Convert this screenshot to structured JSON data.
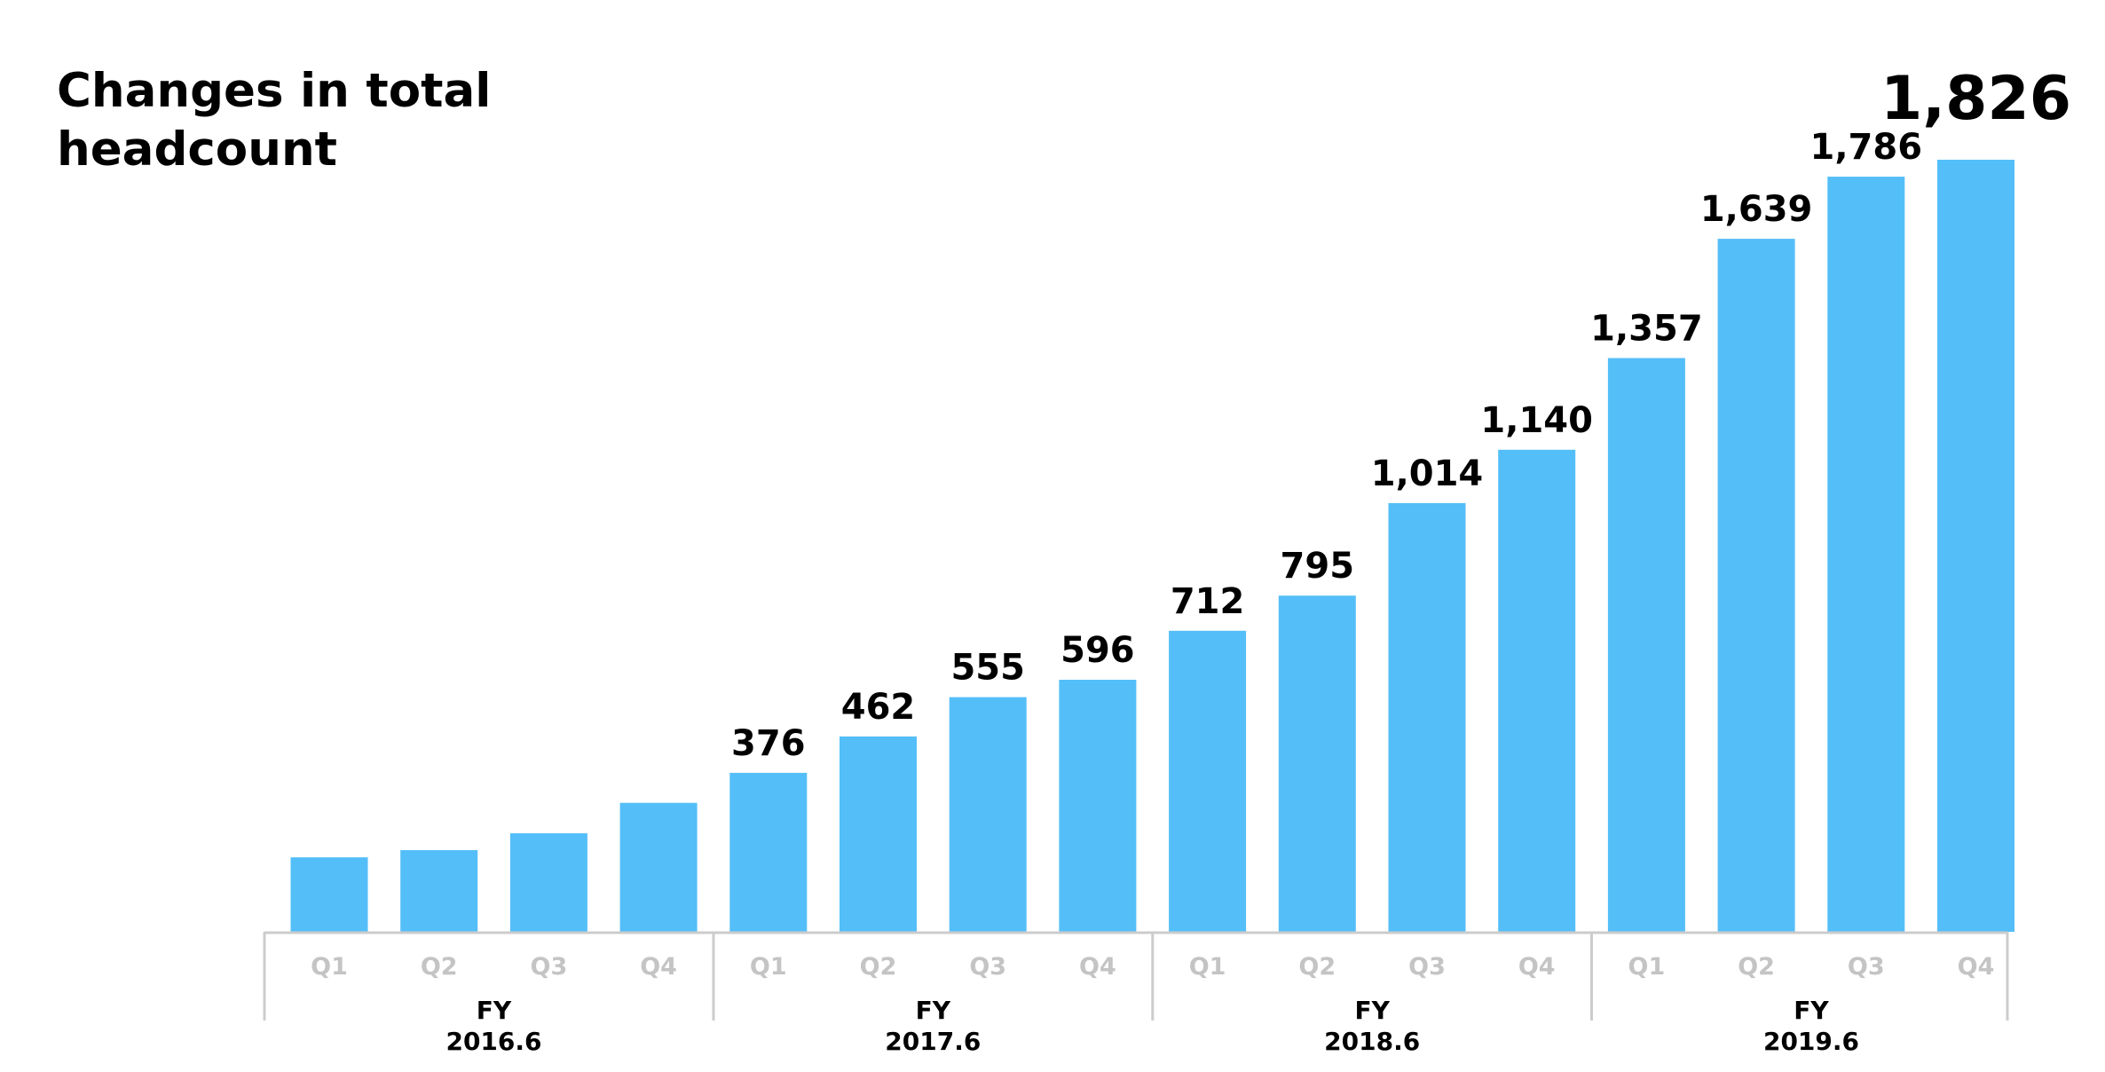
{
  "chart_data": {
    "type": "bar",
    "title": "Changes in total headcount",
    "title_lines": [
      "Changes in total",
      "headcount"
    ],
    "categories": [
      "Q1",
      "Q2",
      "Q3",
      "Q4",
      "Q1",
      "Q2",
      "Q3",
      "Q4",
      "Q1",
      "Q2",
      "Q3",
      "Q4",
      "Q1",
      "Q2",
      "Q3",
      "Q4"
    ],
    "groups": [
      {
        "label_lines": [
          "FY",
          "2016.6"
        ],
        "quarters": [
          "Q1",
          "Q2",
          "Q3",
          "Q4"
        ]
      },
      {
        "label_lines": [
          "FY",
          "2017.6"
        ],
        "quarters": [
          "Q1",
          "Q2",
          "Q3",
          "Q4"
        ]
      },
      {
        "label_lines": [
          "FY",
          "2018.6"
        ],
        "quarters": [
          "Q1",
          "Q2",
          "Q3",
          "Q4"
        ]
      },
      {
        "label_lines": [
          "FY",
          "2019.6"
        ],
        "quarters": [
          "Q1",
          "Q2",
          "Q3",
          "Q4"
        ]
      }
    ],
    "values": [
      176,
      193,
      233,
      305,
      376,
      462,
      555,
      596,
      712,
      795,
      1014,
      1140,
      1357,
      1639,
      1786,
      1826
    ],
    "value_labels": [
      "",
      "",
      "",
      "",
      "376",
      "462",
      "555",
      "596",
      "712",
      "795",
      "1,014",
      "1,140",
      "1,357",
      "1,639",
      "1,786",
      "1,826"
    ],
    "highlight_index": 15,
    "ylim": [
      0,
      1826
    ],
    "grid": false,
    "legend": "none",
    "colors": {
      "bar": "#54bef8",
      "highlight_label": "#54bef8",
      "axis": "#cccccc",
      "quarter_label": "#c4c4c4",
      "text": "#000000"
    }
  }
}
